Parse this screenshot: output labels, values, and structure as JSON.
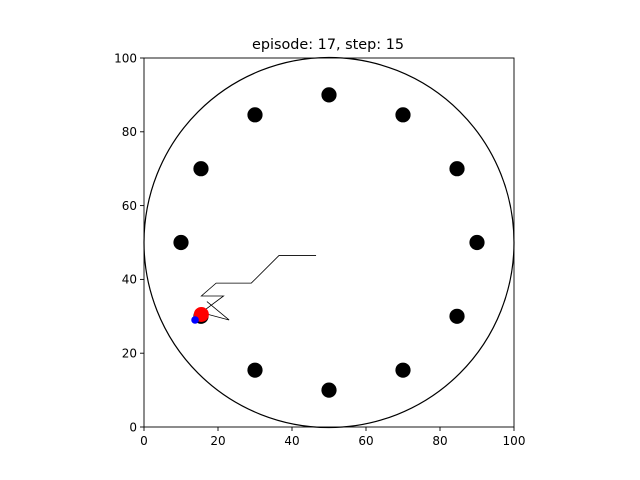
{
  "title": "episode: 17, step: 15",
  "chart_data": {
    "type": "scatter",
    "title": "episode: 17, step: 15",
    "xlabel": "",
    "ylabel": "",
    "xlim": [
      0,
      100
    ],
    "ylim": [
      0,
      100
    ],
    "xticks": [
      0,
      20,
      40,
      60,
      80,
      100
    ],
    "yticks": [
      0,
      20,
      40,
      60,
      80,
      100
    ],
    "grid": false,
    "arena": {
      "center": [
        50,
        50
      ],
      "radius": 50,
      "color": "#000000"
    },
    "obstacles": {
      "color": "#000000",
      "points": [
        [
          50,
          90
        ],
        [
          70,
          84.6
        ],
        [
          84.6,
          70
        ],
        [
          90,
          50
        ],
        [
          84.6,
          30
        ],
        [
          70,
          15.4
        ],
        [
          50,
          10
        ],
        [
          30,
          15.4
        ],
        [
          15.4,
          30
        ],
        [
          10,
          50
        ],
        [
          15.4,
          70
        ],
        [
          30,
          84.6
        ]
      ]
    },
    "trajectory": {
      "color": "#000000",
      "points": [
        [
          46.5,
          46.5
        ],
        [
          36.5,
          46.5
        ],
        [
          29,
          39
        ],
        [
          19.5,
          39
        ],
        [
          15.5,
          35.5
        ],
        [
          21.5,
          35.5
        ],
        [
          15.5,
          31
        ],
        [
          23,
          29
        ],
        [
          17,
          34
        ]
      ]
    },
    "agent": {
      "color": "#ff0000",
      "x": 15.5,
      "y": 30.5
    },
    "target": {
      "color": "#0000ff",
      "x": 13.8,
      "y": 29
    }
  }
}
